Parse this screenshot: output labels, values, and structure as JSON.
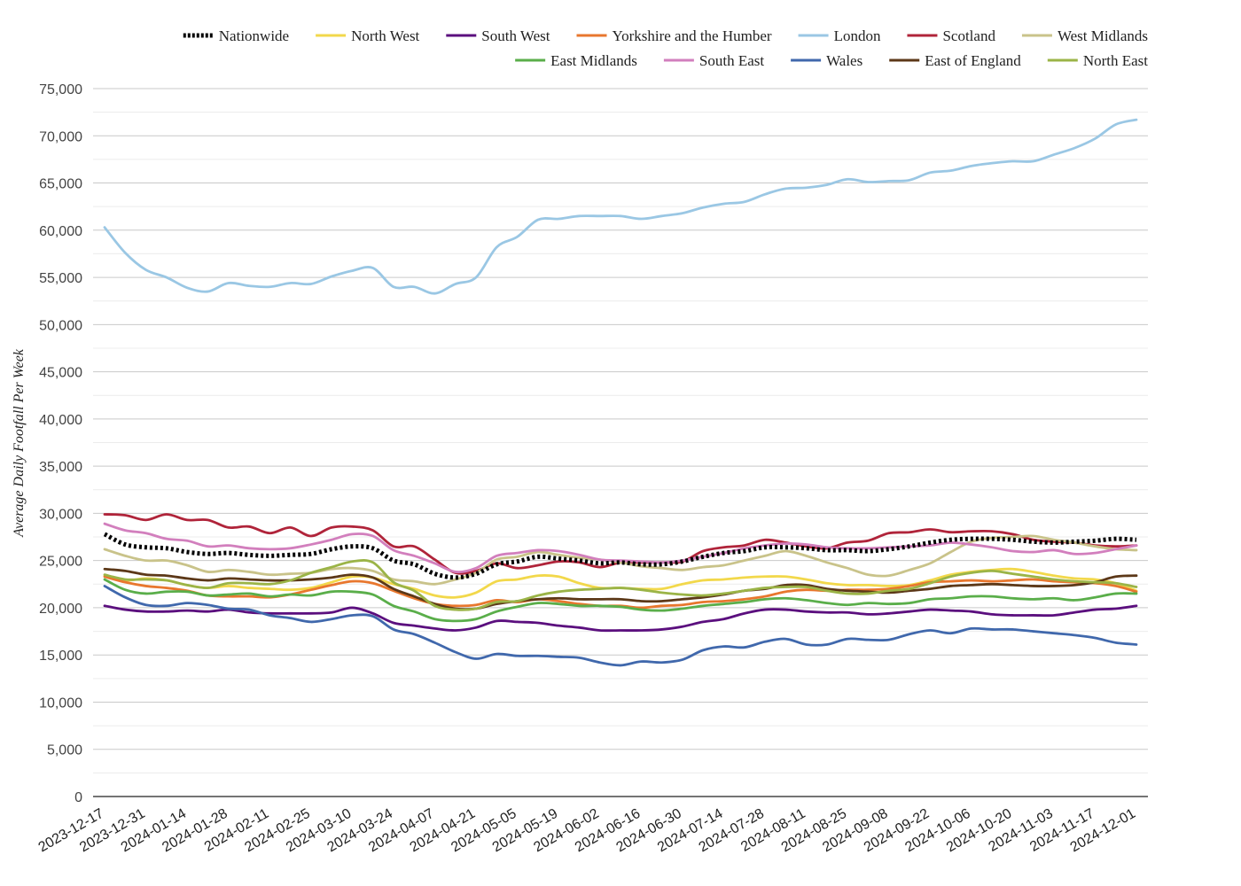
{
  "chart_data": {
    "type": "line",
    "xlabel": "",
    "ylabel": "Average Daily Footfall Per Week",
    "ylim": [
      0,
      75000
    ],
    "y_ticks": [
      0,
      5000,
      10000,
      15000,
      20000,
      25000,
      30000,
      35000,
      40000,
      45000,
      50000,
      55000,
      60000,
      65000,
      70000,
      75000
    ],
    "y_tick_labels": [
      "0",
      "5,000",
      "10,000",
      "15,000",
      "20,000",
      "25,000",
      "30,000",
      "35,000",
      "40,000",
      "45,000",
      "50,000",
      "55,000",
      "60,000",
      "65,000",
      "70,000",
      "75,000"
    ],
    "grid": true,
    "legend_position": "top",
    "x_tick_labels": [
      "2023-12-17",
      "2023-12-31",
      "2024-01-14",
      "2024-01-28",
      "2024-02-11",
      "2024-02-25",
      "2024-03-10",
      "2024-03-24",
      "2024-04-07",
      "2024-04-21",
      "2024-05-05",
      "2024-05-19",
      "2024-06-02",
      "2024-06-16",
      "2024-06-30",
      "2024-07-14",
      "2024-07-28",
      "2024-08-11",
      "2024-08-25",
      "2024-09-08",
      "2024-09-22",
      "2024-10-06",
      "2024-10-20",
      "2024-11-03",
      "2024-11-17",
      "2024-12-01"
    ],
    "x": [
      "2023-12-17",
      "2023-12-24",
      "2023-12-31",
      "2024-01-07",
      "2024-01-14",
      "2024-01-21",
      "2024-01-28",
      "2024-02-04",
      "2024-02-11",
      "2024-02-18",
      "2024-02-25",
      "2024-03-03",
      "2024-03-10",
      "2024-03-17",
      "2024-03-24",
      "2024-03-31",
      "2024-04-07",
      "2024-04-14",
      "2024-04-21",
      "2024-04-28",
      "2024-05-05",
      "2024-05-12",
      "2024-05-19",
      "2024-05-26",
      "2024-06-02",
      "2024-06-09",
      "2024-06-16",
      "2024-06-23",
      "2024-06-30",
      "2024-07-07",
      "2024-07-14",
      "2024-07-21",
      "2024-07-28",
      "2024-08-04",
      "2024-08-11",
      "2024-08-18",
      "2024-08-25",
      "2024-09-01",
      "2024-09-08",
      "2024-09-15",
      "2024-09-22",
      "2024-09-29",
      "2024-10-06",
      "2024-10-13",
      "2024-10-20",
      "2024-10-27",
      "2024-11-03",
      "2024-11-10",
      "2024-11-17",
      "2024-11-24",
      "2024-12-01"
    ],
    "series": [
      {
        "name": "Nationwide",
        "color": "#000000",
        "style": "dotted",
        "values": [
          27800,
          26700,
          26400,
          26300,
          25900,
          25700,
          25800,
          25600,
          25500,
          25600,
          25700,
          26200,
          26500,
          26300,
          25000,
          24600,
          23600,
          23200,
          23600,
          24600,
          24900,
          25400,
          25200,
          25000,
          24700,
          24800,
          24600,
          24600,
          24900,
          25400,
          25800,
          26000,
          26400,
          26400,
          26300,
          26100,
          26100,
          26000,
          26200,
          26500,
          26900,
          27200,
          27300,
          27300,
          27200,
          27000,
          26900,
          27000,
          27100,
          27300,
          27200
        ]
      },
      {
        "name": "North West",
        "color": "#f2d84b",
        "values": [
          23400,
          22900,
          23100,
          22900,
          22400,
          22100,
          22300,
          22100,
          22000,
          21900,
          22100,
          22700,
          23300,
          23200,
          22500,
          22000,
          21300,
          21100,
          21600,
          22800,
          23000,
          23400,
          23300,
          22600,
          22100,
          22100,
          22000,
          22000,
          22500,
          22900,
          23000,
          23200,
          23300,
          23300,
          23000,
          22600,
          22400,
          22400,
          22300,
          22400,
          22900,
          23500,
          23800,
          24000,
          24100,
          23800,
          23400,
          23100,
          23000,
          22600,
          21800
        ]
      },
      {
        "name": "South West",
        "color": "#5b0f7e",
        "values": [
          20200,
          19800,
          19600,
          19600,
          19700,
          19600,
          19800,
          19500,
          19400,
          19400,
          19400,
          19500,
          20000,
          19400,
          18400,
          18100,
          17800,
          17600,
          17900,
          18600,
          18500,
          18400,
          18100,
          17900,
          17600,
          17600,
          17600,
          17700,
          18000,
          18500,
          18800,
          19400,
          19800,
          19800,
          19600,
          19500,
          19500,
          19300,
          19400,
          19600,
          19800,
          19700,
          19600,
          19300,
          19200,
          19200,
          19200,
          19500,
          19800,
          19900,
          20200
        ]
      },
      {
        "name": "Yorkshire and the Humber",
        "color": "#e8772e",
        "values": [
          23300,
          22700,
          22300,
          22100,
          21800,
          21300,
          21200,
          21200,
          21100,
          21400,
          21900,
          22400,
          22800,
          22600,
          21800,
          21000,
          20400,
          20200,
          20300,
          20800,
          20600,
          20900,
          20700,
          20400,
          20200,
          20200,
          20000,
          20200,
          20300,
          20600,
          20700,
          20900,
          21200,
          21700,
          21900,
          21800,
          21900,
          21900,
          22000,
          22300,
          22700,
          22800,
          22900,
          22800,
          22900,
          23000,
          22800,
          22700,
          22600,
          22300,
          21700
        ]
      },
      {
        "name": "London",
        "color": "#9ac7e4",
        "values": [
          60300,
          57600,
          55800,
          55000,
          53900,
          53500,
          54400,
          54100,
          54000,
          54400,
          54300,
          55100,
          55700,
          56000,
          54000,
          54000,
          53300,
          54300,
          55000,
          58200,
          59300,
          61100,
          61200,
          61500,
          61500,
          61500,
          61200,
          61500,
          61800,
          62400,
          62800,
          63000,
          63800,
          64400,
          64500,
          64800,
          65400,
          65100,
          65200,
          65300,
          66100,
          66300,
          66800,
          67100,
          67300,
          67300,
          68000,
          68700,
          69700,
          71200,
          71700
        ]
      },
      {
        "name": "Scotland",
        "color": "#b0243a",
        "values": [
          29900,
          29800,
          29300,
          29900,
          29300,
          29300,
          28500,
          28600,
          27900,
          28500,
          27600,
          28500,
          28600,
          28200,
          26500,
          26500,
          25100,
          23700,
          23900,
          24700,
          24200,
          24500,
          24900,
          24800,
          24300,
          24800,
          24800,
          24800,
          24900,
          26000,
          26400,
          26600,
          27200,
          26900,
          26500,
          26300,
          26900,
          27100,
          27900,
          28000,
          28300,
          28000,
          28100,
          28100,
          27800,
          27200,
          27000,
          26900,
          26600,
          26500,
          26600
        ]
      },
      {
        "name": "West Midlands",
        "color": "#c9c38a",
        "values": [
          26200,
          25500,
          25000,
          25000,
          24500,
          23800,
          24000,
          23800,
          23500,
          23600,
          23700,
          24100,
          24200,
          23900,
          23000,
          22800,
          22500,
          23000,
          23700,
          25100,
          25400,
          25900,
          25600,
          25300,
          25100,
          24800,
          24400,
          24200,
          24000,
          24300,
          24500,
          25000,
          25500,
          26000,
          25500,
          24800,
          24200,
          23500,
          23400,
          24000,
          24700,
          25900,
          27000,
          27400,
          27500,
          27600,
          27200,
          26900,
          26500,
          26200,
          26100
        ]
      },
      {
        "name": "East Midlands",
        "color": "#5aae4a",
        "values": [
          23000,
          21900,
          21500,
          21700,
          21700,
          21300,
          21400,
          21500,
          21200,
          21400,
          21300,
          21700,
          21700,
          21400,
          20200,
          19600,
          18800,
          18600,
          18800,
          19600,
          20100,
          20500,
          20400,
          20200,
          20200,
          20100,
          19800,
          19700,
          19900,
          20200,
          20400,
          20600,
          20900,
          21000,
          20800,
          20500,
          20300,
          20500,
          20400,
          20500,
          20900,
          21000,
          21200,
          21200,
          21000,
          20900,
          21000,
          20800,
          21100,
          21500,
          21500
        ]
      },
      {
        "name": "South East",
        "color": "#d27fbd",
        "values": [
          28900,
          28200,
          27900,
          27300,
          27100,
          26500,
          26600,
          26300,
          26200,
          26300,
          26700,
          27200,
          27800,
          27600,
          26100,
          25500,
          24700,
          23800,
          24200,
          25500,
          25800,
          26100,
          26000,
          25600,
          25100,
          25000,
          24900,
          24800,
          25000,
          25400,
          25800,
          26300,
          26600,
          26800,
          26700,
          26400,
          26300,
          26300,
          26400,
          26500,
          26600,
          26900,
          26700,
          26400,
          26000,
          25900,
          26100,
          25700,
          25800,
          26200,
          26600
        ]
      },
      {
        "name": "Wales",
        "color": "#4068ac",
        "values": [
          22300,
          21100,
          20300,
          20200,
          20500,
          20300,
          19900,
          19800,
          19200,
          18900,
          18500,
          18800,
          19200,
          19100,
          17700,
          17200,
          16300,
          15300,
          14600,
          15100,
          14900,
          14900,
          14800,
          14700,
          14200,
          13900,
          14300,
          14200,
          14500,
          15500,
          15900,
          15800,
          16400,
          16700,
          16100,
          16100,
          16700,
          16600,
          16600,
          17200,
          17600,
          17300,
          17800,
          17700,
          17700,
          17500,
          17300,
          17100,
          16800,
          16300,
          16100
        ]
      },
      {
        "name": "East of England",
        "color": "#5c3818",
        "values": [
          24100,
          23900,
          23500,
          23400,
          23100,
          22900,
          23100,
          23000,
          22900,
          22900,
          23000,
          23200,
          23500,
          23200,
          22000,
          21200,
          20400,
          19900,
          19900,
          20400,
          20700,
          20900,
          21000,
          20900,
          20900,
          20900,
          20700,
          20700,
          20900,
          21100,
          21400,
          21800,
          22000,
          22400,
          22400,
          22000,
          21800,
          21700,
          21600,
          21800,
          22000,
          22300,
          22400,
          22500,
          22400,
          22300,
          22300,
          22400,
          22700,
          23300,
          23400
        ]
      },
      {
        "name": "North East",
        "color": "#9bb447",
        "values": [
          23500,
          23000,
          23000,
          22900,
          22400,
          22100,
          22600,
          22600,
          22500,
          22900,
          23700,
          24300,
          24900,
          24800,
          22700,
          21800,
          20200,
          19800,
          19900,
          20600,
          20700,
          21300,
          21700,
          21900,
          22000,
          22100,
          21900,
          21600,
          21400,
          21300,
          21500,
          21800,
          22100,
          22200,
          22200,
          21800,
          21500,
          21500,
          21800,
          22000,
          22600,
          23300,
          23700,
          23900,
          23600,
          23300,
          23000,
          22800,
          22700,
          22600,
          22200
        ]
      }
    ]
  }
}
